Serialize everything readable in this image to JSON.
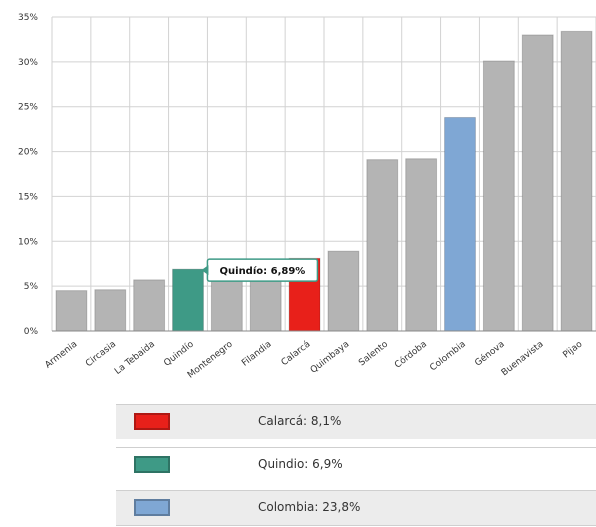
{
  "chart_data": {
    "type": "bar",
    "categories": [
      "Armenia",
      "Circasia",
      "La Tebaida",
      "Quindío",
      "Montenegro",
      "Filandia",
      "Calarcá",
      "Quimbaya",
      "Salento",
      "Córdoba",
      "Colombia",
      "Génova",
      "Buenavista",
      "Pijao"
    ],
    "values": [
      4.5,
      4.6,
      5.7,
      6.89,
      6.1,
      6.3,
      8.1,
      8.9,
      19.1,
      19.2,
      23.8,
      30.1,
      33.0,
      33.4
    ],
    "ylim": [
      0,
      35
    ],
    "yticks": [
      "0%",
      "5%",
      "10%",
      "15%",
      "20%",
      "25%",
      "30%",
      "35%"
    ],
    "grid": true,
    "colors": {
      "default": "#b4b4b4",
      "Calarcá": "#e8201a",
      "Quindío": "#3e9a86",
      "Colombia": "#7fa7d4"
    },
    "tooltip": {
      "category": "Quindío",
      "text": "Quindío: 6,89%"
    }
  },
  "legend": [
    {
      "label": "Calarcá:  8,1%",
      "color": "#e8201a"
    },
    {
      "label": "Quindio:  6,9%",
      "color": "#3e9a86"
    },
    {
      "label": "Colombia:  23,8%",
      "color": "#7fa7d4"
    }
  ]
}
